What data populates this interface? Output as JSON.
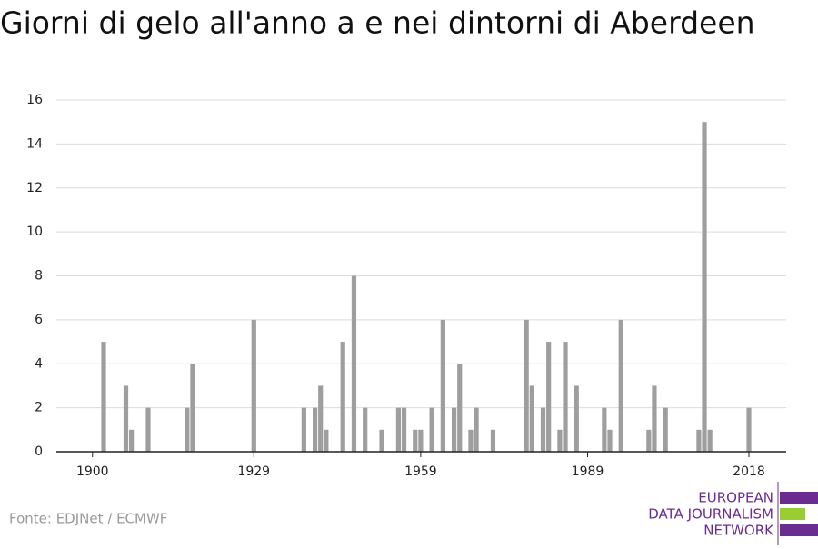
{
  "chart_data": {
    "type": "bar",
    "title": "Giorni di gelo all'anno a e nei dintorni di Aberdeen",
    "source": "Fonte: EDJNet / ECMWF",
    "logo": [
      "EUROPEAN",
      "DATA JOURNALISM",
      "NETWORK"
    ],
    "color": "#9e9e9e",
    "x": [
      1902,
      1906,
      1907,
      1910,
      1917,
      1918,
      1929,
      1938,
      1940,
      1941,
      1942,
      1945,
      1947,
      1949,
      1952,
      1955,
      1956,
      1958,
      1959,
      1961,
      1963,
      1965,
      1966,
      1968,
      1969,
      1972,
      1978,
      1979,
      1981,
      1982,
      1984,
      1985,
      1987,
      1992,
      1993,
      1995,
      2000,
      2001,
      2003,
      2009,
      2010,
      2011,
      2018
    ],
    "values": [
      5,
      3,
      1,
      2,
      2,
      4,
      6,
      2,
      2,
      3,
      1,
      5,
      8,
      2,
      1,
      2,
      2,
      1,
      1,
      2,
      6,
      2,
      4,
      1,
      2,
      1,
      6,
      3,
      2,
      5,
      1,
      5,
      3,
      2,
      1,
      6,
      1,
      3,
      2,
      1,
      15,
      1,
      2
    ],
    "xlim": [
      1893.5,
      2024.7
    ],
    "xticks": [
      1900,
      1929,
      1959,
      1989,
      2018
    ],
    "ylim": [
      0,
      16
    ],
    "yticks": [
      0,
      2,
      4,
      6,
      8,
      10,
      12,
      14,
      16
    ],
    "grid": true
  }
}
